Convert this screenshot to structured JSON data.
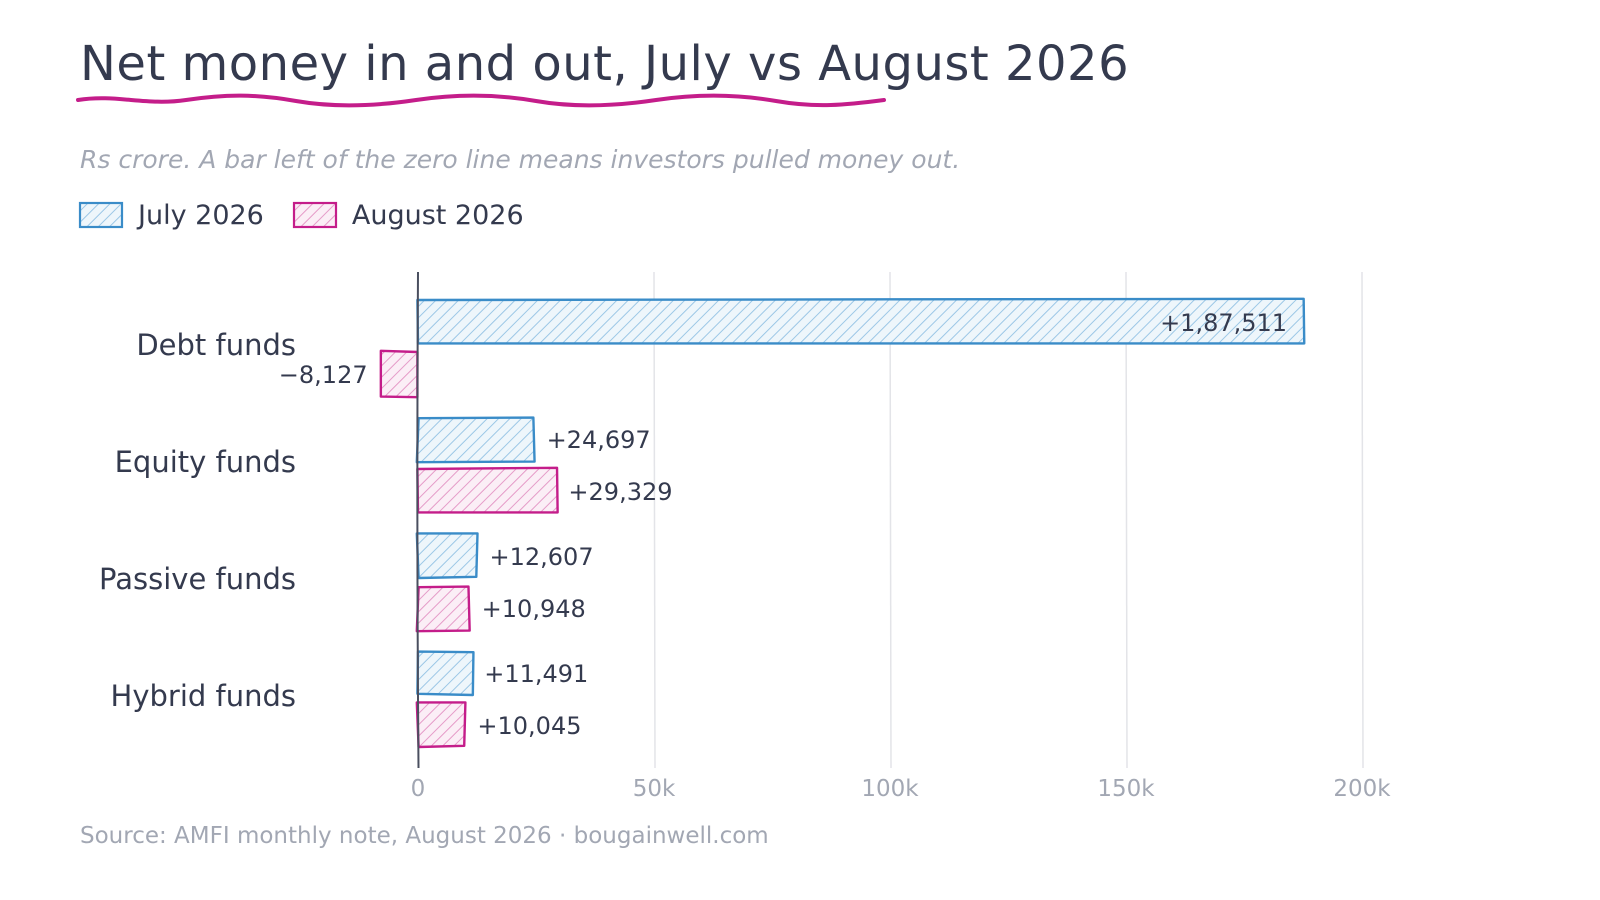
{
  "chart_data": {
    "type": "bar",
    "orientation": "horizontal",
    "title": "Net money in and out, July vs August 2026",
    "subtitle": "Rs crore. A bar left of the zero line means investors pulled money out.",
    "source": "Source: AMFI monthly note, August 2026 · bougainwell.com",
    "categories": [
      "Debt funds",
      "Equity funds",
      "Passive funds",
      "Hybrid funds"
    ],
    "series": [
      {
        "name": "July 2026",
        "color": "#3a8cc8",
        "values": [
          187511,
          24697,
          12607,
          11491
        ],
        "labels": [
          "+1,87,511",
          "+24,697",
          "+12,607",
          "+11,491"
        ]
      },
      {
        "name": "August 2026",
        "color": "#c41d8a",
        "values": [
          -8127,
          29329,
          10948,
          10045
        ],
        "labels": [
          "−8,127",
          "+29,329",
          "+10,948",
          "+10,045"
        ]
      }
    ],
    "xlim": [
      -10000,
      220000
    ],
    "xticks": [
      0,
      50000,
      100000,
      150000,
      200000
    ],
    "xtick_labels": [
      "0",
      "50k",
      "100k",
      "150k",
      "200k"
    ],
    "grid": true,
    "legend": "top-left",
    "xlabel": "",
    "ylabel": ""
  },
  "accent_color": "#c41d8a"
}
